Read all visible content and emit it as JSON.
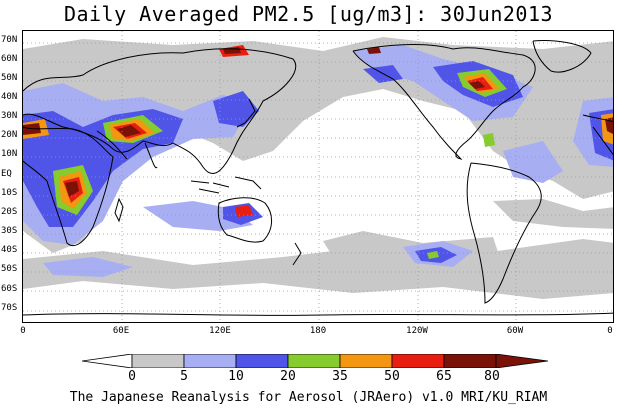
{
  "title": "Daily Averaged PM2.5 [ug/m3]: 30Jun2013",
  "footer": "The Japanese Reanalysis for Aerosol (JRAero) v1.0 MRI/KU_RIAM",
  "lat_labels": [
    "70N",
    "60N",
    "50N",
    "40N",
    "30N",
    "20N",
    "10N",
    "EQ",
    "10S",
    "20S",
    "30S",
    "40S",
    "50S",
    "60S",
    "70S"
  ],
  "lon_labels": [
    "0",
    "60E",
    "120E",
    "180",
    "120W",
    "60W",
    "0"
  ],
  "colorbar": {
    "levels": [
      "0",
      "5",
      "10",
      "20",
      "35",
      "50",
      "65",
      "80"
    ],
    "colors": [
      "#ffffff",
      "#c8c8c8",
      "#a8aef2",
      "#5055e8",
      "#86cc2e",
      "#f39612",
      "#e81e10",
      "#7a1208"
    ]
  },
  "palette": {
    "land_outline": "#000000",
    "grid": "#9a9a9a",
    "level_5": "#c8c8c8",
    "level_10": "#a8aef2",
    "level_20": "#5055e8",
    "level_35": "#86cc2e",
    "level_50": "#f39612",
    "level_65": "#e81e10",
    "level_80": "#7a1208"
  }
}
